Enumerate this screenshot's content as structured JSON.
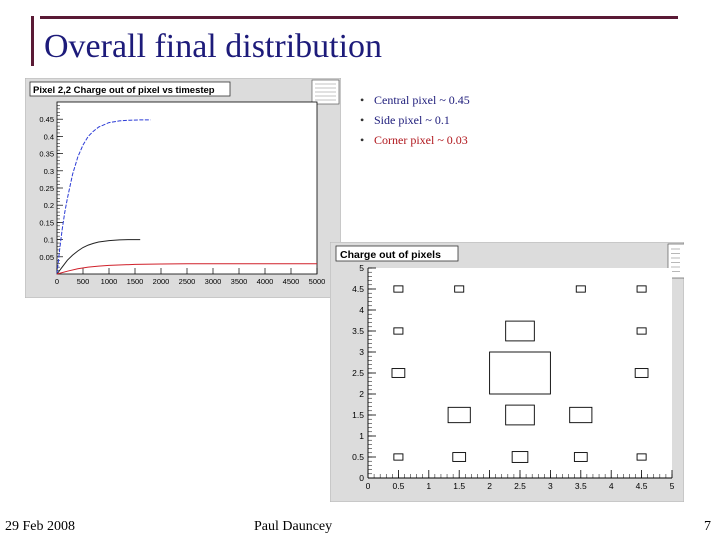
{
  "slide": {
    "title": "Overall final distribution",
    "bullets": [
      {
        "text": "Central pixel ~ 0.45",
        "color": "#1d1b7a"
      },
      {
        "text": "Side pixel ~ 0.1",
        "color": "#1d1b7a"
      },
      {
        "text": "Corner pixel ~ 0.03",
        "color": "#b0161c"
      }
    ],
    "footer": {
      "date": "29 Feb 2008",
      "author": "Paul Dauncey",
      "page": "7"
    }
  },
  "chart_data": [
    {
      "type": "line",
      "title": "Pixel 2,2 Charge out of pixel vs timestep",
      "xlabel": "",
      "ylabel": "",
      "xlim": [
        0,
        5000
      ],
      "ylim": [
        0,
        0.5
      ],
      "x_ticks": [
        "0",
        "500",
        "1000",
        "1500",
        "2000",
        "2500",
        "3000",
        "3500",
        "4000",
        "4500",
        "5000"
      ],
      "y_ticks": [
        "0.05",
        "0.1",
        "0.15",
        "0.2",
        "0.25",
        "0.3",
        "0.35",
        "0.4",
        "0.45"
      ],
      "y_tick_values": [
        0.05,
        0.1,
        0.15,
        0.2,
        0.25,
        0.3,
        0.35,
        0.4,
        0.45
      ],
      "grid": false,
      "series": [
        {
          "color": "#2b3bd6",
          "x": [
            0,
            50,
            100,
            150,
            200,
            300,
            400,
            500,
            600,
            700,
            800,
            1000,
            1200,
            1400,
            1600,
            1800
          ],
          "y": [
            0,
            0.07,
            0.13,
            0.18,
            0.22,
            0.29,
            0.34,
            0.375,
            0.4,
            0.415,
            0.427,
            0.44,
            0.445,
            0.447,
            0.448,
            0.448
          ]
        },
        {
          "color": "#222222",
          "x": [
            0,
            100,
            200,
            300,
            400,
            500,
            600,
            700,
            800,
            1000,
            1200,
            1400,
            1600
          ],
          "y": [
            0,
            0.02,
            0.04,
            0.055,
            0.067,
            0.077,
            0.084,
            0.089,
            0.093,
            0.097,
            0.099,
            0.1,
            0.1
          ]
        },
        {
          "color": "#d0202a",
          "x": [
            0,
            200,
            400,
            600,
            800,
            1000,
            1500,
            2000,
            2500,
            3000,
            3500,
            4000,
            4500,
            5000
          ],
          "y": [
            0,
            0.008,
            0.015,
            0.02,
            0.023,
            0.025,
            0.028,
            0.029,
            0.03,
            0.03,
            0.03,
            0.03,
            0.03,
            0.03
          ]
        }
      ]
    },
    {
      "type": "heatmap",
      "title": "Charge out of pixels",
      "xlabel": "",
      "ylabel": "",
      "xlim": [
        0,
        5
      ],
      "ylim": [
        0,
        5
      ],
      "x_ticks": [
        "0",
        "0.5",
        "1",
        "1.5",
        "2",
        "2.5",
        "3",
        "3.5",
        "4",
        "4.5",
        "5"
      ],
      "y_ticks": [
        "0",
        "0.5",
        "1",
        "1.5",
        "2",
        "2.5",
        "3",
        "3.5",
        "4",
        "4.5",
        "5"
      ],
      "grid": false,
      "cells": [
        {
          "x": 0.5,
          "y": 0.5,
          "value": 0.01
        },
        {
          "x": 1.5,
          "y": 0.5,
          "value": 0.02
        },
        {
          "x": 2.5,
          "y": 0.5,
          "value": 0.03
        },
        {
          "x": 3.5,
          "y": 0.5,
          "value": 0.02
        },
        {
          "x": 4.5,
          "y": 0.5,
          "value": 0.01
        },
        {
          "x": 1.5,
          "y": 1.5,
          "value": 0.06
        },
        {
          "x": 2.5,
          "y": 1.5,
          "value": 0.1
        },
        {
          "x": 3.5,
          "y": 1.5,
          "value": 0.06
        },
        {
          "x": 0.5,
          "y": 2.5,
          "value": 0.02
        },
        {
          "x": 2.5,
          "y": 2.5,
          "value": 0.45
        },
        {
          "x": 4.5,
          "y": 2.5,
          "value": 0.02
        },
        {
          "x": 0.5,
          "y": 3.5,
          "value": 0.01
        },
        {
          "x": 2.5,
          "y": 3.5,
          "value": 0.1
        },
        {
          "x": 4.5,
          "y": 3.5,
          "value": 0.01
        },
        {
          "x": 0.5,
          "y": 4.5,
          "value": 0.01
        },
        {
          "x": 1.5,
          "y": 4.5,
          "value": 0.01
        },
        {
          "x": 3.5,
          "y": 4.5,
          "value": 0.01
        },
        {
          "x": 4.5,
          "y": 4.5,
          "value": 0.01
        }
      ]
    }
  ]
}
